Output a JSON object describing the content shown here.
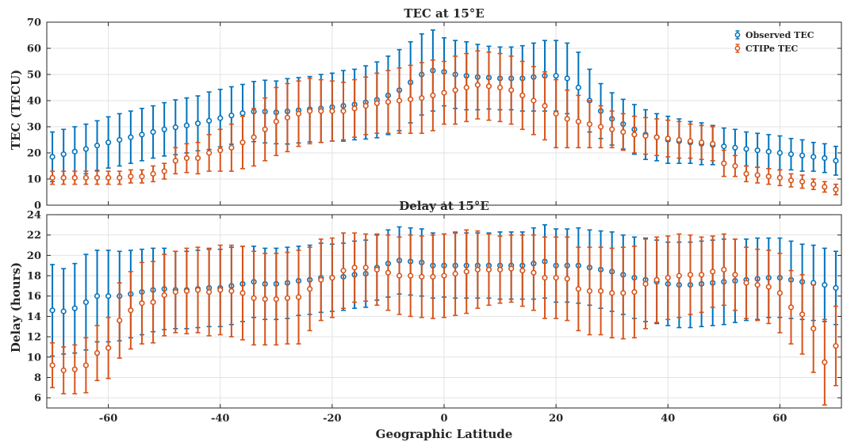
{
  "chart_data": [
    {
      "type": "scatter",
      "title": "TEC at 15°E",
      "xlabel": "",
      "ylabel": "TEC (TECU)",
      "xlim": [
        -71,
        71
      ],
      "ylim": [
        0,
        70
      ],
      "yticks": [
        0,
        10,
        20,
        30,
        40,
        50,
        60,
        70
      ],
      "grid": true,
      "legend": "top-right",
      "series": [
        {
          "name": "Observed TEC",
          "color": "#0072BD",
          "x": [
            -70,
            -68,
            -66,
            -64,
            -62,
            -60,
            -58,
            -56,
            -54,
            -52,
            -50,
            -48,
            -46,
            -44,
            -42,
            -40,
            -38,
            -36,
            -34,
            -32,
            -30,
            -28,
            -26,
            -24,
            -22,
            -20,
            -18,
            -16,
            -14,
            -12,
            -10,
            -8,
            -6,
            -4,
            -2,
            0,
            2,
            4,
            6,
            8,
            10,
            12,
            14,
            16,
            18,
            20,
            22,
            24,
            26,
            28,
            30,
            32,
            34,
            36,
            38,
            40,
            42,
            44,
            46,
            48,
            50,
            52,
            54,
            56,
            58,
            60,
            62,
            64,
            66,
            68,
            70
          ],
          "y": [
            18.5,
            19.5,
            20.5,
            21.5,
            22.8,
            24,
            25,
            26,
            27,
            28,
            29,
            29.8,
            30.5,
            31.3,
            32.3,
            33.3,
            34.3,
            35.2,
            35.8,
            35.8,
            35.5,
            35.9,
            36.3,
            36.7,
            37,
            37.5,
            38,
            38.5,
            39.3,
            40.3,
            42,
            44,
            47,
            50,
            51.5,
            51,
            50,
            49.5,
            49,
            48.8,
            48.5,
            48.5,
            48.5,
            49,
            49.5,
            49.5,
            48.5,
            45,
            40,
            36,
            33,
            31,
            29,
            27,
            26,
            25,
            24.5,
            24,
            23.5,
            23,
            22.5,
            22,
            21.5,
            21,
            20.5,
            20,
            19.5,
            19,
            18.5,
            18,
            17
          ],
          "err": [
            9.5,
            9.5,
            9.5,
            9.5,
            9.5,
            9.8,
            10,
            10,
            10,
            10,
            10.2,
            10.5,
            10.5,
            10.5,
            11,
            11,
            11,
            11,
            11.5,
            12,
            12,
            12.5,
            12.5,
            12.5,
            13,
            13,
            13.5,
            13.5,
            14,
            14.5,
            15,
            15.5,
            15.5,
            15.5,
            15.5,
            13,
            13,
            13,
            12.5,
            12,
            12,
            12,
            12.5,
            13,
            13.5,
            13.5,
            13.5,
            13.5,
            12,
            10.5,
            10,
            9.5,
            9.5,
            9.5,
            9,
            9,
            8.5,
            8,
            8,
            7.5,
            7,
            7,
            6.5,
            6.5,
            6.5,
            6.5,
            6,
            6,
            5.5,
            5.5,
            5.5
          ]
        },
        {
          "name": "CTIPe TEC",
          "color": "#D95319",
          "x": [
            -70,
            -68,
            -66,
            -64,
            -62,
            -60,
            -58,
            -56,
            -54,
            -52,
            -50,
            -48,
            -46,
            -44,
            -42,
            -40,
            -38,
            -36,
            -34,
            -32,
            -30,
            -28,
            -26,
            -24,
            -22,
            -20,
            -18,
            -16,
            -14,
            -12,
            -10,
            -8,
            -6,
            -4,
            -2,
            0,
            2,
            4,
            6,
            8,
            10,
            12,
            14,
            16,
            18,
            20,
            22,
            24,
            26,
            28,
            30,
            32,
            34,
            36,
            38,
            40,
            42,
            44,
            46,
            48,
            50,
            52,
            54,
            56,
            58,
            60,
            62,
            64,
            66,
            68,
            70
          ],
          "y": [
            10.5,
            10.5,
            10.5,
            10.5,
            10.5,
            10.5,
            10.5,
            11,
            11,
            12,
            13,
            17,
            18,
            18,
            20,
            21,
            22,
            24,
            26,
            29,
            32,
            33.5,
            35,
            36,
            36,
            36,
            36,
            37,
            38,
            39,
            39.5,
            40,
            40.5,
            41,
            42,
            43,
            44,
            45,
            46,
            45.5,
            45,
            44,
            42,
            40,
            38,
            35,
            33,
            32,
            31,
            30,
            29,
            28,
            27,
            26.5,
            26,
            25.5,
            25,
            24.5,
            24,
            23.5,
            16,
            15,
            12,
            11.5,
            11,
            10.5,
            9.5,
            9,
            8,
            7,
            6
          ],
          "err": [
            2.5,
            2.5,
            2.5,
            2.5,
            2.5,
            2.5,
            2.5,
            2.5,
            2.5,
            3,
            3,
            5,
            5.5,
            6,
            7,
            8,
            9,
            10,
            11,
            12,
            13,
            13,
            12.5,
            12.5,
            12,
            11.5,
            11,
            11,
            11,
            11.5,
            12,
            12.5,
            13,
            13.5,
            13.5,
            12,
            13,
            13,
            13,
            13,
            13,
            13,
            13,
            13,
            13,
            13,
            11,
            10,
            9,
            8,
            7,
            7,
            7,
            7,
            7,
            7,
            7,
            6.5,
            6.5,
            6.5,
            5,
            4,
            3,
            3,
            3,
            3,
            2.5,
            2.5,
            2,
            2,
            2
          ]
        }
      ]
    },
    {
      "type": "scatter",
      "title": "Delay at 15°E",
      "xlabel": "Geographic Latitude",
      "ylabel": "Delay (hours)",
      "xlim": [
        -71,
        71
      ],
      "ylim": [
        5,
        24
      ],
      "yticks": [
        6,
        8,
        10,
        12,
        14,
        16,
        18,
        20,
        22,
        24
      ],
      "xticks": [
        -60,
        -40,
        -20,
        0,
        20,
        40,
        60
      ],
      "grid": true,
      "series": [
        {
          "name": "Observed TEC",
          "color": "#0072BD",
          "x": [
            -70,
            -68,
            -66,
            -64,
            -62,
            -60,
            -58,
            -56,
            -54,
            -52,
            -50,
            -48,
            -46,
            -44,
            -42,
            -40,
            -38,
            -36,
            -34,
            -32,
            -30,
            -28,
            -26,
            -24,
            -22,
            -20,
            -18,
            -16,
            -14,
            -12,
            -10,
            -8,
            -6,
            -4,
            -2,
            0,
            2,
            4,
            6,
            8,
            10,
            12,
            14,
            16,
            18,
            20,
            22,
            24,
            26,
            28,
            30,
            32,
            34,
            36,
            38,
            40,
            42,
            44,
            46,
            48,
            50,
            52,
            54,
            56,
            58,
            60,
            62,
            64,
            66,
            68,
            70
          ],
          "y": [
            14.6,
            14.5,
            14.8,
            15.4,
            16,
            16,
            16,
            16.2,
            16.4,
            16.6,
            16.7,
            16.6,
            16.6,
            16.7,
            16.8,
            16.8,
            17,
            17.2,
            17.4,
            17.2,
            17.2,
            17.3,
            17.5,
            17.6,
            17.8,
            17.8,
            17.9,
            18.1,
            18.2,
            18.8,
            19.2,
            19.5,
            19.4,
            19.3,
            19,
            19,
            19,
            19,
            19,
            19,
            19,
            19,
            19,
            19.2,
            19.4,
            19,
            19,
            19,
            18.8,
            18.6,
            18.4,
            18.1,
            17.8,
            17.6,
            17.4,
            17.2,
            17.1,
            17.1,
            17.2,
            17.3,
            17.4,
            17.5,
            17.6,
            17.7,
            17.8,
            17.8,
            17.6,
            17.4,
            17.3,
            17.1,
            16.8
          ],
          "err": [
            4.5,
            4.2,
            4.4,
            4.7,
            4.5,
            4.5,
            4.4,
            4.3,
            4.2,
            4.1,
            4,
            3.8,
            3.8,
            3.8,
            3.8,
            3.8,
            3.8,
            3.7,
            3.5,
            3.5,
            3.5,
            3.5,
            3.4,
            3.4,
            3.4,
            3.3,
            3.3,
            3.3,
            3.3,
            3.2,
            3.3,
            3.3,
            3.3,
            3.3,
            3.2,
            3.1,
            3.2,
            3.2,
            3.2,
            3.2,
            3.3,
            3.3,
            3.3,
            3.5,
            3.6,
            3.6,
            3.6,
            3.7,
            3.7,
            3.8,
            3.9,
            3.9,
            4,
            4.1,
            4.1,
            4.1,
            4.2,
            4.2,
            4.2,
            4.2,
            4.2,
            4.1,
            4,
            4,
            3.9,
            3.9,
            3.8,
            3.7,
            3.7,
            3.6,
            3.6
          ]
        },
        {
          "name": "CTIPe TEC",
          "color": "#D95319",
          "x": [
            -70,
            -68,
            -66,
            -64,
            -62,
            -60,
            -58,
            -56,
            -54,
            -52,
            -50,
            -48,
            -46,
            -44,
            -42,
            -40,
            -38,
            -36,
            -34,
            -32,
            -30,
            -28,
            -26,
            -24,
            -22,
            -20,
            -18,
            -16,
            -14,
            -12,
            -10,
            -8,
            -6,
            -4,
            -2,
            0,
            2,
            4,
            6,
            8,
            10,
            12,
            14,
            16,
            18,
            20,
            22,
            24,
            26,
            28,
            30,
            32,
            34,
            36,
            38,
            40,
            42,
            44,
            46,
            48,
            50,
            52,
            54,
            56,
            58,
            60,
            62,
            64,
            66,
            68,
            70
          ],
          "y": [
            9.2,
            8.7,
            8.8,
            9.2,
            10.4,
            10.9,
            13.6,
            14.6,
            15.3,
            15.4,
            16.1,
            16.4,
            16.5,
            16.6,
            16.4,
            16.6,
            16.5,
            16.3,
            15.8,
            15.7,
            15.7,
            15.8,
            15.9,
            16.7,
            17.6,
            17.8,
            18.5,
            18.8,
            18.8,
            18.6,
            18.3,
            18,
            18,
            17.9,
            17.9,
            18,
            18.2,
            18.4,
            18.6,
            18.6,
            18.6,
            18.7,
            18.5,
            18.3,
            17.8,
            17.8,
            17.7,
            16.7,
            16.5,
            16.5,
            16.3,
            16.3,
            16.4,
            17.2,
            17.6,
            17.8,
            18,
            18.1,
            18.1,
            18.4,
            18.6,
            18.1,
            17.3,
            17.1,
            16.9,
            16.3,
            14.9,
            14.2,
            12.8,
            9.5,
            11.1
          ],
          "err": [
            2.2,
            2.3,
            2.4,
            2.7,
            2.7,
            3,
            3.7,
            3.8,
            4,
            4,
            4,
            4,
            4.2,
            4.2,
            4.3,
            4.4,
            4.5,
            4.6,
            4.6,
            4.5,
            4.5,
            4.5,
            4.6,
            4.1,
            4,
            3.9,
            3.7,
            3.4,
            3.3,
            3.5,
            3.7,
            3.8,
            4,
            4,
            4.1,
            4.1,
            4.1,
            4.1,
            3.8,
            3.5,
            3.3,
            3.3,
            3.5,
            3.7,
            4,
            4,
            4.1,
            4.1,
            4.3,
            4.3,
            4.4,
            4.5,
            4.5,
            4.4,
            4.2,
            4.1,
            4.1,
            3.9,
            3.7,
            3.5,
            3.5,
            3.5,
            3.5,
            3.5,
            3.6,
            3.9,
            3.6,
            3.9,
            4.3,
            4.2,
            3.9
          ]
        }
      ]
    }
  ]
}
